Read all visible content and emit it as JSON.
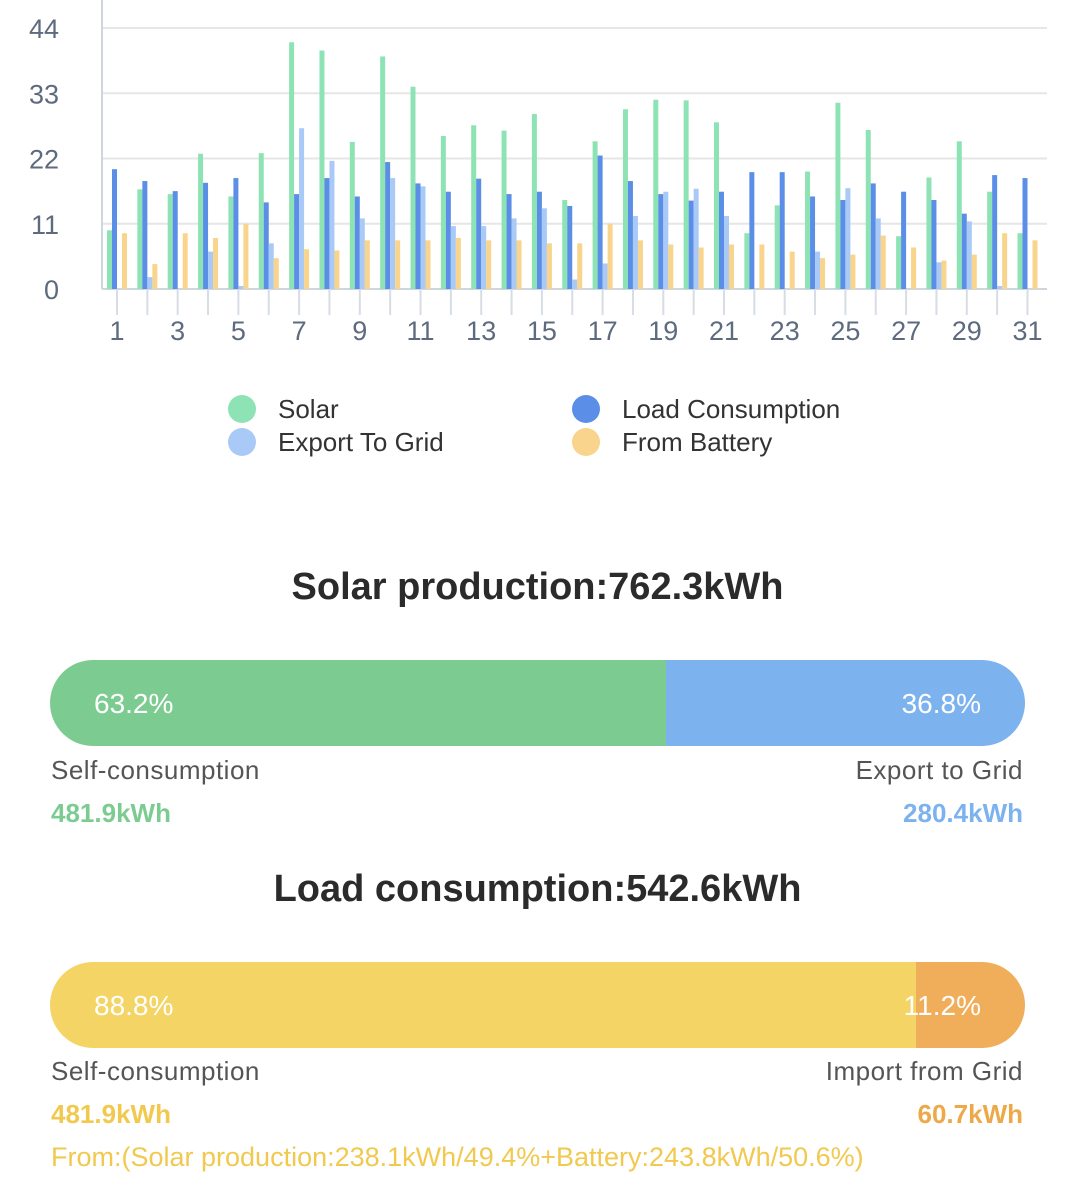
{
  "chart_data": {
    "type": "bar",
    "x": [
      1,
      2,
      3,
      4,
      5,
      6,
      7,
      8,
      9,
      10,
      11,
      12,
      13,
      14,
      15,
      16,
      17,
      18,
      19,
      20,
      21,
      22,
      23,
      24,
      25,
      26,
      27,
      28,
      29,
      30,
      31
    ],
    "x_tick_labels": [
      "1",
      "3",
      "5",
      "7",
      "9",
      "11",
      "13",
      "15",
      "17",
      "19",
      "21",
      "23",
      "25",
      "27",
      "29",
      "31"
    ],
    "y_ticks": [
      "0",
      "11",
      "22",
      "33",
      "44"
    ],
    "ylim": [
      0,
      44
    ],
    "series": [
      {
        "name": "Solar",
        "color": "#8ee3b5",
        "values": [
          9.9,
          16.8,
          16.0,
          22.8,
          15.6,
          22.9,
          41.6,
          40.2,
          24.8,
          39.2,
          34.1,
          25.8,
          27.6,
          26.7,
          29.5,
          15.0,
          24.9,
          30.3,
          31.9,
          31.8,
          28.1,
          9.4,
          14.1,
          19.8,
          31.4,
          26.8,
          8.9,
          18.8,
          24.9,
          16.4,
          9.4
        ]
      },
      {
        "name": "Load Consumption",
        "color": "#5b8ee6",
        "values": [
          20.2,
          18.2,
          16.5,
          17.9,
          18.7,
          14.6,
          16.0,
          18.7,
          15.6,
          21.4,
          17.8,
          16.4,
          18.6,
          16.0,
          16.4,
          14.0,
          22.5,
          18.2,
          16.0,
          14.9,
          16.4,
          19.7,
          19.7,
          15.6,
          15.0,
          17.8,
          16.4,
          15.0,
          12.7,
          19.2,
          18.7
        ]
      },
      {
        "name": "Export To Grid",
        "color": "#a9c9f7",
        "values": [
          0,
          2.0,
          0,
          6.3,
          0.5,
          7.7,
          27.1,
          21.6,
          11.9,
          18.7,
          17.3,
          10.6,
          10.6,
          11.9,
          13.6,
          1.6,
          4.3,
          12.3,
          16.4,
          16.9,
          12.3,
          0,
          0,
          6.3,
          17.0,
          11.9,
          0,
          4.5,
          11.4,
          0.5,
          0
        ]
      },
      {
        "name": "From Battery",
        "color": "#f8d48c",
        "values": [
          9.4,
          4.2,
          9.4,
          8.6,
          11.0,
          5.2,
          6.7,
          6.5,
          8.2,
          8.2,
          8.2,
          8.6,
          8.2,
          8.2,
          7.7,
          7.7,
          11.0,
          8.2,
          7.5,
          7.0,
          7.5,
          7.5,
          6.3,
          5.2,
          5.8,
          9.0,
          7.0,
          4.8,
          5.8,
          9.4,
          8.2
        ]
      }
    ],
    "legend": [
      "Solar",
      "Load Consumption",
      "Export To Grid",
      "From Battery"
    ],
    "legend_placement": "bottom-center",
    "grid": true,
    "title": "",
    "xlabel": "",
    "ylabel": ""
  },
  "legend": {
    "solar": {
      "label": "Solar",
      "color": "#8ee3b5"
    },
    "load": {
      "label": "Load Consumption",
      "color": "#5b8ee6"
    },
    "export": {
      "label": "Export To Grid",
      "color": "#a9c9f7"
    },
    "battery": {
      "label": "From Battery",
      "color": "#f8d48c"
    }
  },
  "solar_summary": {
    "title": "Solar production:762.3kWh",
    "self_consumption": {
      "label": "Self-consumption",
      "pct": "63.2%",
      "pct_value": 63.2,
      "value": "481.9kWh",
      "color": "#7ccc91",
      "text_color": "#7ccc91"
    },
    "export": {
      "label": "Export to Grid",
      "pct": "36.8%",
      "pct_value": 36.8,
      "value": "280.4kWh",
      "color": "#7cb2ee",
      "text_color": "#7cb2ee"
    }
  },
  "load_summary": {
    "title": "Load consumption:542.6kWh",
    "self_consumption": {
      "label": "Self-consumption",
      "pct": "88.8%",
      "pct_value": 88.8,
      "value": "481.9kWh",
      "color": "#f5d466",
      "text_color": "#f1c94f"
    },
    "import": {
      "label": "Import from Grid",
      "pct": "11.2%",
      "pct_value": 11.2,
      "value": "60.7kWh",
      "color": "#f0ad5a",
      "text_color": "#eda84a"
    },
    "breakdown": "From:(Solar production:238.1kWh/49.4%+Battery:243.8kWh/50.6%)"
  }
}
